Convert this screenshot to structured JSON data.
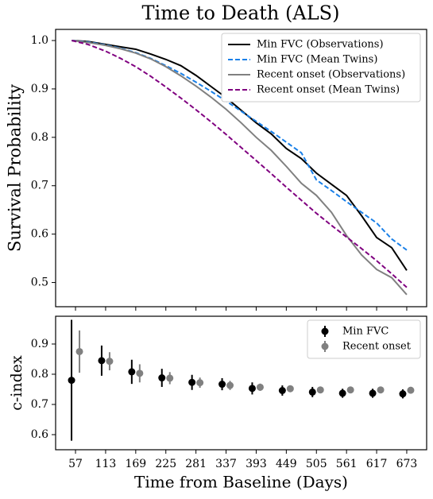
{
  "chart_data": [
    {
      "type": "line",
      "title": "Time to Death (ALS)",
      "ylabel": "Survival Probability",
      "x": [
        50,
        80,
        113,
        141,
        169,
        197,
        225,
        253,
        281,
        309,
        337,
        365,
        393,
        421,
        449,
        477,
        505,
        533,
        561,
        589,
        617,
        645,
        673
      ],
      "xlim": [
        20,
        710
      ],
      "ylim": [
        0.45,
        1.023
      ],
      "yticks": [
        0.5,
        0.6,
        0.7,
        0.8,
        0.9,
        {
          "value": 1,
          "label": "1.0"
        }
      ],
      "legend": "upper right",
      "series": [
        {
          "name": "Min FVC (Observations)",
          "color": "#000000",
          "dash": "solid",
          "values": [
            1.0,
            0.998,
            0.992,
            0.987,
            0.982,
            0.972,
            0.961,
            0.948,
            0.928,
            0.905,
            0.882,
            0.856,
            0.83,
            0.807,
            0.777,
            0.756,
            0.726,
            0.703,
            0.68,
            0.638,
            0.593,
            0.572,
            0.525
          ]
        },
        {
          "name": "Min FVC (Mean Twins)",
          "color": "#1a80e8",
          "dash": "dashed",
          "values": [
            1.0,
            0.997,
            0.991,
            0.984,
            0.975,
            0.963,
            0.948,
            0.932,
            0.914,
            0.895,
            0.875,
            0.854,
            0.833,
            0.812,
            0.79,
            0.768,
            0.712,
            0.69,
            0.667,
            0.645,
            0.623,
            0.59,
            0.567
          ]
        },
        {
          "name": "Recent onset (Observations)",
          "color": "#808080",
          "dash": "solid",
          "values": [
            1.0,
            0.996,
            0.99,
            0.983,
            0.974,
            0.962,
            0.946,
            0.927,
            0.906,
            0.883,
            0.858,
            0.83,
            0.8,
            0.773,
            0.74,
            0.705,
            0.68,
            0.645,
            0.597,
            0.557,
            0.527,
            0.51,
            0.475
          ]
        },
        {
          "name": "Recent onset (Mean Twins)",
          "color": "#800080",
          "dash": "dashed",
          "values": [
            1.0,
            0.992,
            0.978,
            0.963,
            0.946,
            0.926,
            0.904,
            0.881,
            0.857,
            0.832,
            0.806,
            0.779,
            0.752,
            0.725,
            0.697,
            0.67,
            0.643,
            0.618,
            0.594,
            0.57,
            0.545,
            0.518,
            0.49
          ]
        }
      ]
    },
    {
      "type": "errorbar",
      "ylabel": "c-index",
      "xlabel": "Time from Baseline (Days)",
      "x": [
        57,
        113,
        169,
        225,
        281,
        337,
        393,
        449,
        505,
        561,
        617,
        673
      ],
      "xlim": [
        20,
        710
      ],
      "ylim": [
        0.55,
        0.992
      ],
      "xticks": [
        57,
        113,
        169,
        225,
        281,
        337,
        393,
        449,
        505,
        561,
        617,
        673
      ],
      "yticks": [
        0.6,
        0.7,
        0.8,
        0.9
      ],
      "legend": "upper right",
      "series": [
        {
          "name": "Min FVC",
          "color": "#000000",
          "values": [
            0.78,
            0.845,
            0.808,
            0.788,
            0.773,
            0.767,
            0.753,
            0.746,
            0.741,
            0.737,
            0.737,
            0.735
          ],
          "errors": [
            0.2,
            0.05,
            0.04,
            0.03,
            0.025,
            0.02,
            0.02,
            0.017,
            0.017,
            0.015,
            0.015,
            0.015
          ]
        },
        {
          "name": "Recent onset",
          "color": "#808080",
          "values": [
            0.875,
            0.843,
            0.803,
            0.787,
            0.772,
            0.763,
            0.757,
            0.752,
            0.748,
            0.748,
            0.748,
            0.747
          ],
          "errors": [
            0.07,
            0.03,
            0.03,
            0.02,
            0.017,
            0.015,
            0.012,
            0.01,
            0.01,
            0.01,
            0.01,
            0.01
          ]
        }
      ]
    }
  ]
}
